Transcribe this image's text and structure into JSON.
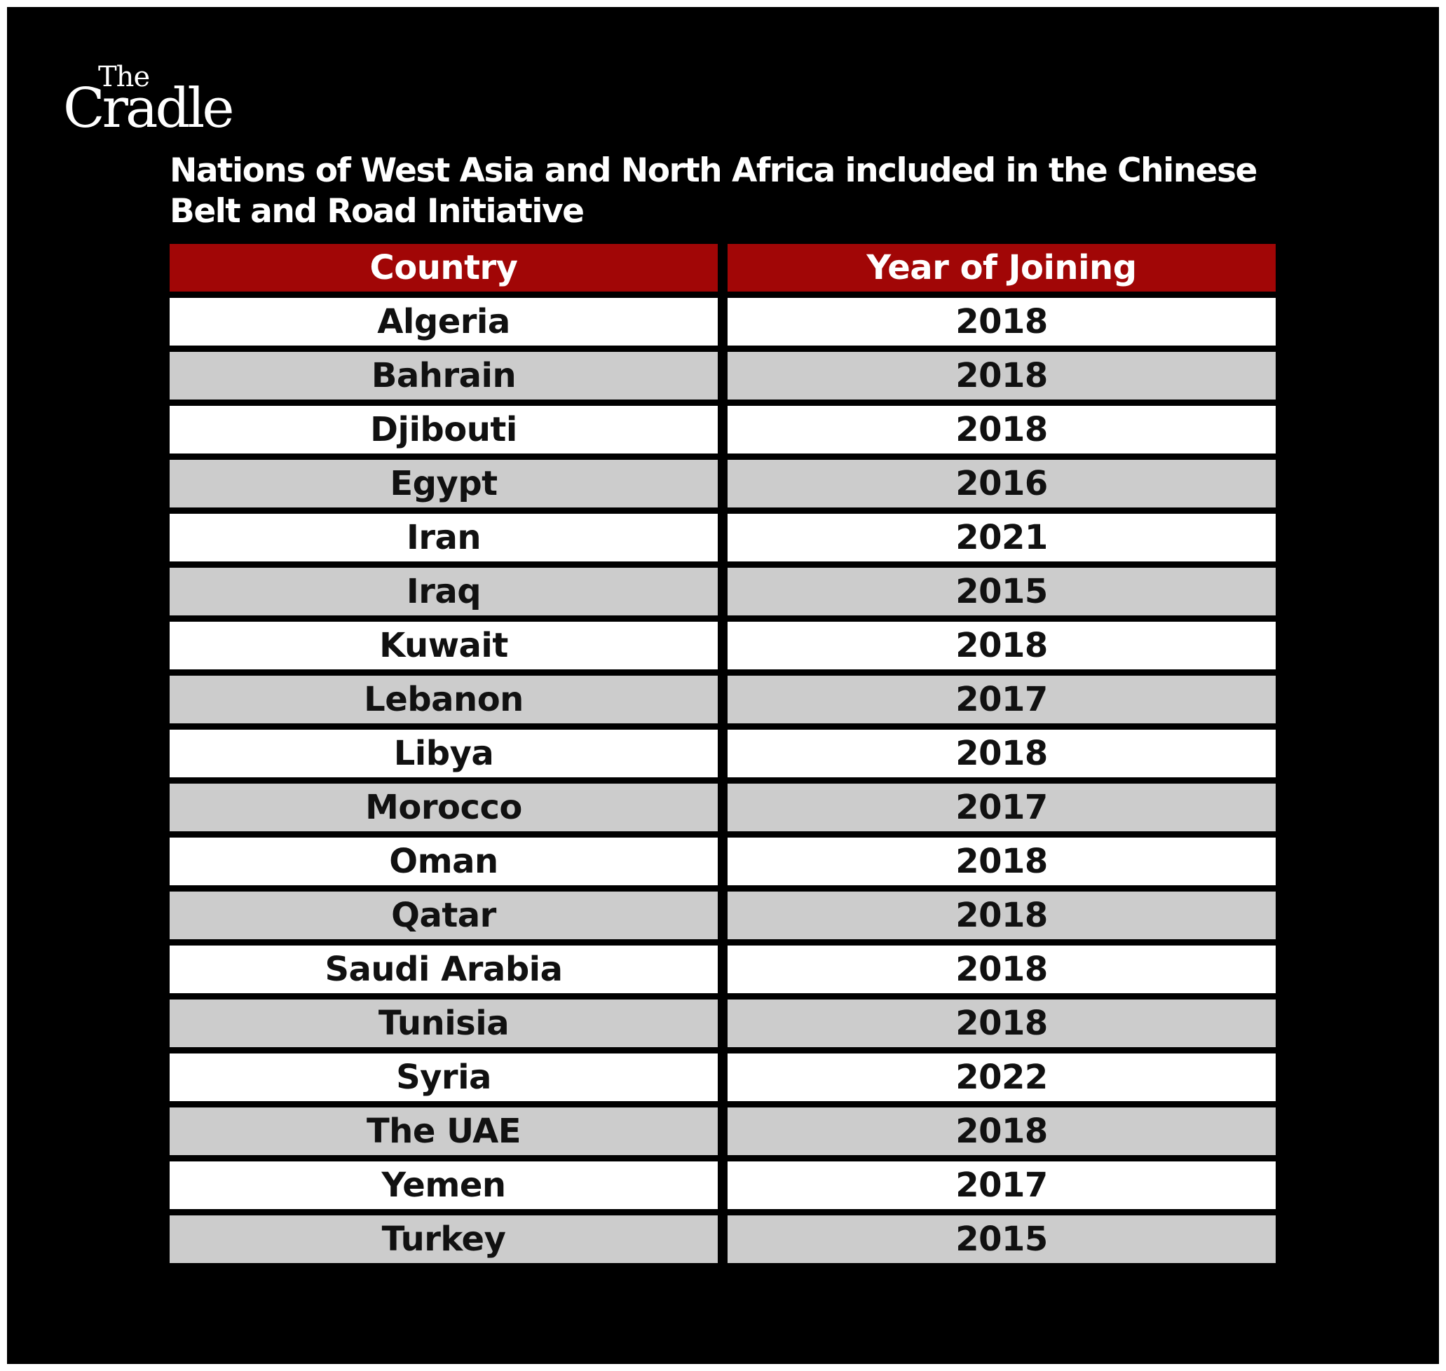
{
  "logo": {
    "line1": "The",
    "line2": "Cradle"
  },
  "title": {
    "line1": "Nations of West Asia and North Africa included in the Chinese",
    "line2": "Belt and Road Initiative"
  },
  "colors": {
    "background": "#000000",
    "header": "#a10606",
    "row_white": "#ffffff",
    "row_gray": "#cccccc"
  },
  "chart_data": {
    "type": "table",
    "columns": [
      "Country",
      "Year of Joining"
    ],
    "rows": [
      [
        "Algeria",
        "2018"
      ],
      [
        "Bahrain",
        "2018"
      ],
      [
        "Djibouti",
        "2018"
      ],
      [
        "Egypt",
        "2016"
      ],
      [
        "Iran",
        "2021"
      ],
      [
        "Iraq",
        "2015"
      ],
      [
        "Kuwait",
        "2018"
      ],
      [
        "Lebanon",
        "2017"
      ],
      [
        "Libya",
        "2018"
      ],
      [
        "Morocco",
        "2017"
      ],
      [
        "Oman",
        "2018"
      ],
      [
        "Qatar",
        "2018"
      ],
      [
        "Saudi Arabia",
        "2018"
      ],
      [
        "Tunisia",
        "2018"
      ],
      [
        "Syria",
        "2022"
      ],
      [
        "The UAE",
        "2018"
      ],
      [
        "Yemen",
        "2017"
      ],
      [
        "Turkey",
        "2015"
      ]
    ]
  }
}
